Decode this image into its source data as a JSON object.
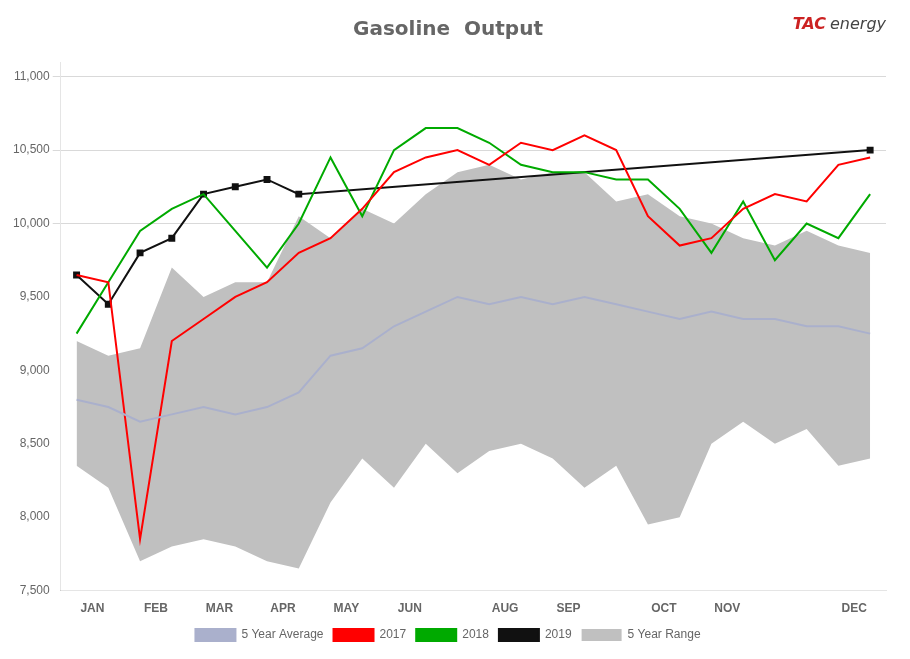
{
  "chart_data": {
    "type": "line",
    "title": "Gasoline  Output",
    "x": [
      0,
      1,
      2,
      3,
      4,
      5,
      6,
      7,
      8,
      9,
      10,
      11,
      12,
      13,
      14,
      15,
      16,
      17,
      18,
      19,
      20,
      21,
      22,
      23,
      24,
      25
    ],
    "xlim": [
      -0.5,
      25.5
    ],
    "xticks": [
      {
        "value": 0.5,
        "label": "JAN"
      },
      {
        "value": 2.5,
        "label": "FEB"
      },
      {
        "value": 4.5,
        "label": "MAR"
      },
      {
        "value": 6.5,
        "label": "APR"
      },
      {
        "value": 8.5,
        "label": "MAY"
      },
      {
        "value": 10.5,
        "label": "JUN"
      },
      {
        "value": 13.5,
        "label": "AUG"
      },
      {
        "value": 15.5,
        "label": "SEP"
      },
      {
        "value": 18.5,
        "label": "OCT"
      },
      {
        "value": 20.5,
        "label": "NOV"
      },
      {
        "value": 24.5,
        "label": "DEC"
      }
    ],
    "ylim": [
      7500,
      11100
    ],
    "yticks": [
      {
        "value": 7500,
        "label": "7,500"
      },
      {
        "value": 8000,
        "label": "8,000"
      },
      {
        "value": 8500,
        "label": "8,500"
      },
      {
        "value": 9000,
        "label": "9,000"
      },
      {
        "value": 9500,
        "label": "9,500"
      },
      {
        "value": 10000,
        "label": "10,000"
      },
      {
        "value": 10500,
        "label": "10,500"
      },
      {
        "value": 11000,
        "label": "11,000"
      }
    ],
    "reference_lines": [
      10000,
      10500,
      11000
    ],
    "legend": "bottom",
    "annotations": [
      {
        "text": "TAC",
        "color": "#cc2222"
      },
      {
        "text": "energy",
        "color": "#444444"
      }
    ],
    "series": [
      {
        "name": "5 Year Range",
        "type": "range",
        "color": "#c0c0c0",
        "low": [
          8350,
          8200,
          7700,
          7800,
          7850,
          7800,
          7700,
          7650,
          8100,
          8400,
          8200,
          8500,
          8300,
          8450,
          8500,
          8400,
          8200,
          8350,
          7950,
          8000,
          8500,
          8650,
          8500,
          8600,
          8350,
          8400
        ],
        "high": [
          9200,
          9100,
          9150,
          9700,
          9500,
          9600,
          9600,
          10050,
          9900,
          10100,
          10000,
          10200,
          10350,
          10400,
          10300,
          10350,
          10350,
          10150,
          10200,
          10050,
          10000,
          9900,
          9850,
          9950,
          9850,
          9800
        ]
      },
      {
        "name": "5 Year Average",
        "color": "#aab0cc",
        "values": [
          8800,
          8750,
          8650,
          8700,
          8750,
          8700,
          8750,
          8850,
          9100,
          9150,
          9300,
          9400,
          9500,
          9450,
          9500,
          9450,
          9500,
          9450,
          9400,
          9350,
          9400,
          9350,
          9350,
          9300,
          9300,
          9250
        ]
      },
      {
        "name": "2017",
        "color": "#ff0000",
        "values": [
          9650,
          9600,
          7850,
          9200,
          9350,
          9500,
          9600,
          9800,
          9900,
          10100,
          10350,
          10450,
          10500,
          10400,
          10550,
          10500,
          10600,
          10500,
          10050,
          9850,
          9900,
          10100,
          10200,
          10150,
          10400,
          10450
        ]
      },
      {
        "name": "2018",
        "color": "#00aa00",
        "values": [
          9250,
          9600,
          9950,
          10100,
          10200,
          9950,
          9700,
          10000,
          10450,
          10050,
          10500,
          10650,
          10650,
          10550,
          10400,
          10350,
          10350,
          10300,
          10300,
          10100,
          9800,
          10150,
          9750,
          10000,
          9900,
          10200
        ]
      },
      {
        "name": "2019",
        "color": "#111111",
        "marker": "square",
        "x": [
          0,
          1,
          2,
          3,
          4,
          5,
          6,
          7,
          25
        ],
        "values": [
          9650,
          9450,
          9800,
          9900,
          10200,
          10250,
          10300,
          10200,
          10500
        ]
      }
    ]
  }
}
